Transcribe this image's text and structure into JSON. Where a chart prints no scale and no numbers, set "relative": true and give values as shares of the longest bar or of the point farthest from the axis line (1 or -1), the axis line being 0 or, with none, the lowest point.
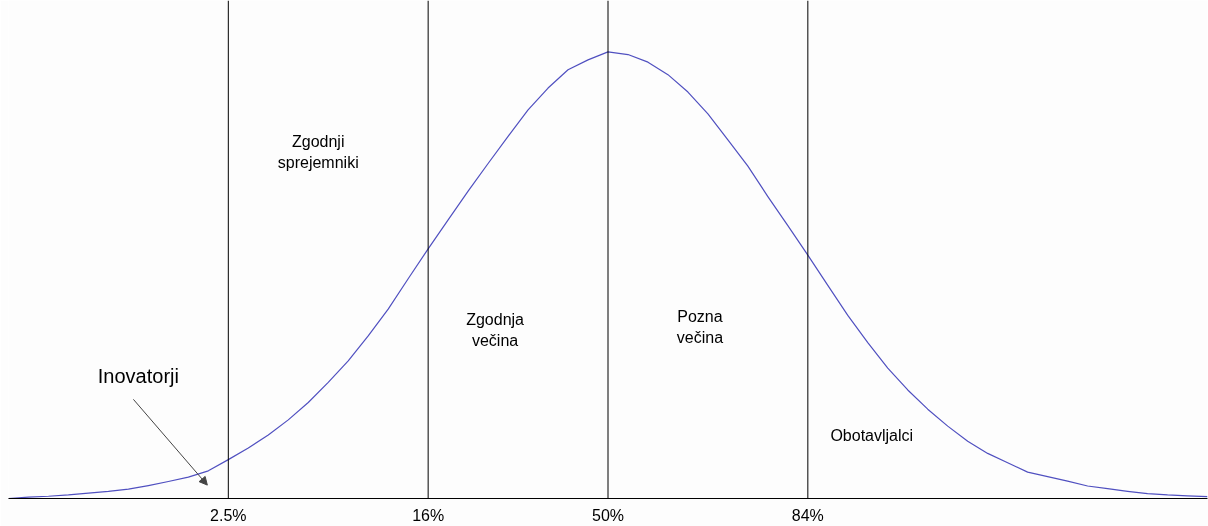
{
  "chart_data": {
    "type": "line",
    "relative": true,
    "grid": false,
    "marker": "none",
    "line_style": "solid",
    "categories": [
      null,
      null,
      null,
      null,
      null,
      null,
      null,
      null,
      null,
      null,
      null,
      "2.5%",
      null,
      null,
      null,
      null,
      null,
      null,
      null,
      null,
      null,
      "16%",
      null,
      null,
      null,
      null,
      null,
      null,
      null,
      null,
      "50%",
      null,
      null,
      null,
      null,
      null,
      null,
      null,
      null,
      null,
      "84%",
      null,
      null,
      null,
      null,
      null,
      null,
      null,
      null,
      null,
      null,
      null,
      null,
      null,
      null,
      null,
      null,
      null,
      null,
      null,
      null
    ],
    "series": [
      {
        "color": "#5050c0",
        "values": [
          0,
          0.003,
          0.005,
          0.008,
          0.012,
          0.016,
          0.021,
          0.029,
          0.038,
          0.048,
          0.062,
          0.087,
          0.113,
          0.142,
          0.176,
          0.215,
          0.26,
          0.308,
          0.364,
          0.424,
          0.492,
          0.559,
          0.624,
          0.688,
          0.75,
          0.811,
          0.87,
          0.919,
          0.96,
          0.982,
          1,
          0.994,
          0.977,
          0.949,
          0.91,
          0.861,
          0.803,
          0.744,
          0.676,
          0.611,
          0.545,
          0.477,
          0.41,
          0.349,
          0.292,
          0.243,
          0.2,
          0.162,
          0.128,
          0.101,
          0.08,
          0.059,
          0.049,
          0.039,
          0.028,
          0.022,
          0.016,
          0.011,
          0.008,
          0.006,
          0.004
        ]
      }
    ],
    "ref_lines": [
      {
        "axis": "x",
        "value": "2.5%",
        "color": "#000000"
      },
      {
        "axis": "x",
        "value": "16%",
        "color": "#000000"
      },
      {
        "axis": "x",
        "value": "50%",
        "color": "#000000"
      },
      {
        "axis": "x",
        "value": "84%",
        "color": "#000000"
      }
    ],
    "annotations": [
      "Inovatorji",
      "Zgodnji\nsprejemniki",
      "Zgodnja\nvečina",
      "Pozna\nvečina",
      "Obotavljalci"
    ]
  }
}
